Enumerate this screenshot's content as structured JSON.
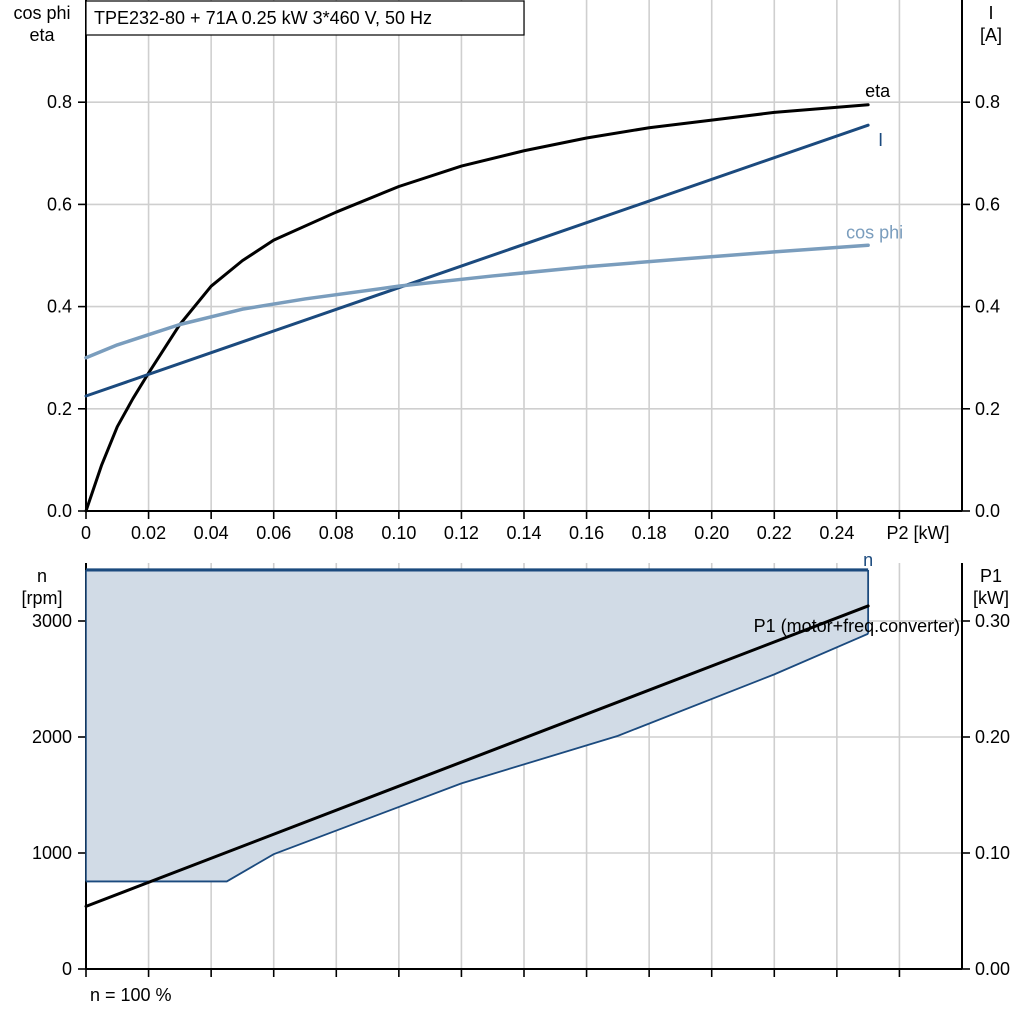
{
  "title": "TPE232-80 + 71A   0.25 kW   3*460 V, 50 Hz",
  "footer": "n = 100 %",
  "colors": {
    "eta": "#000000",
    "current": "#1b4a7e",
    "cos_phi": "#7a9dbd",
    "speed": "#1b4a7e",
    "speed_fill": "#d1dbe6",
    "p1": "#000000",
    "grid": "#cfcfcf"
  },
  "chart_data": [
    {
      "type": "line",
      "x_axis": {
        "label": "P2 [kW]",
        "range": [
          0,
          0.28
        ],
        "ticks": [
          "0",
          "0.02",
          "0.04",
          "0.06",
          "0.08",
          "0.10",
          "0.12",
          "0.14",
          "0.16",
          "0.18",
          "0.20",
          "0.22",
          "0.24"
        ]
      },
      "y_left": {
        "label": [
          "cos phi",
          "eta"
        ],
        "range": [
          0,
          1.0
        ],
        "ticks": [
          "0.0",
          "0.2",
          "0.4",
          "0.6",
          "0.8"
        ]
      },
      "y_right": {
        "label": [
          "I",
          "[A]"
        ],
        "range": [
          0,
          1.0
        ],
        "ticks": [
          "0.0",
          "0.2",
          "0.4",
          "0.6",
          "0.8"
        ]
      },
      "grid": true,
      "series": [
        {
          "name": "eta",
          "axis": "left",
          "x": [
            0,
            0.005,
            0.01,
            0.015,
            0.02,
            0.03,
            0.04,
            0.05,
            0.06,
            0.08,
            0.1,
            0.12,
            0.14,
            0.16,
            0.18,
            0.2,
            0.22,
            0.25
          ],
          "y": [
            0,
            0.09,
            0.165,
            0.22,
            0.27,
            0.365,
            0.44,
            0.49,
            0.53,
            0.585,
            0.635,
            0.675,
            0.705,
            0.73,
            0.75,
            0.765,
            0.78,
            0.795
          ]
        },
        {
          "name": "I",
          "axis": "right",
          "x": [
            0,
            0.25
          ],
          "y": [
            0.225,
            0.755
          ]
        },
        {
          "name": "cos phi",
          "axis": "left",
          "x": [
            0,
            0.01,
            0.02,
            0.03,
            0.05,
            0.07,
            0.1,
            0.13,
            0.16,
            0.19,
            0.22,
            0.25
          ],
          "y": [
            0.3,
            0.325,
            0.345,
            0.365,
            0.395,
            0.415,
            0.44,
            0.46,
            0.478,
            0.493,
            0.507,
            0.52
          ]
        }
      ]
    },
    {
      "type": "area",
      "x_axis": {
        "range": [
          0,
          0.28
        ]
      },
      "y_left": {
        "label": [
          "n",
          "[rpm]"
        ],
        "range": [
          0,
          3500
        ],
        "ticks": [
          "0",
          "1000",
          "2000",
          "3000"
        ]
      },
      "y_right": {
        "label": [
          "P1",
          "[kW]"
        ],
        "range": [
          0,
          0.35
        ],
        "ticks": [
          "0.00",
          "0.10",
          "0.20",
          "0.30"
        ]
      },
      "grid": true,
      "series": [
        {
          "name": "n",
          "axis": "left",
          "kind": "band",
          "x": [
            0,
            0.045,
            0.06,
            0.12,
            0.17,
            0.22,
            0.25
          ],
          "upper": [
            3440,
            3440,
            3440,
            3440,
            3440,
            3440,
            3440
          ],
          "lower": [
            755,
            755,
            990,
            1600,
            2010,
            2540,
            2890
          ]
        },
        {
          "name": "P1 (motor+freq.converter)",
          "axis": "right",
          "x": [
            0,
            0.25
          ],
          "y": [
            0.054,
            0.313
          ]
        }
      ]
    }
  ]
}
